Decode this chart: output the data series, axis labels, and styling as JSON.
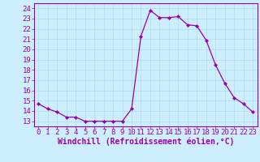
{
  "x": [
    0,
    1,
    2,
    3,
    4,
    5,
    6,
    7,
    8,
    9,
    10,
    11,
    12,
    13,
    14,
    15,
    16,
    17,
    18,
    19,
    20,
    21,
    22,
    23
  ],
  "y": [
    14.7,
    14.2,
    13.9,
    13.4,
    13.4,
    13.0,
    13.0,
    13.0,
    13.0,
    13.0,
    14.2,
    21.3,
    23.8,
    23.1,
    23.1,
    23.2,
    22.4,
    22.3,
    20.9,
    18.5,
    16.7,
    15.3,
    14.7,
    13.9
  ],
  "line_color": "#9900aa",
  "marker_color": "#9900aa",
  "bg_color": "#cceeff",
  "grid_color": "#aaddee",
  "tick_color": "#9900aa",
  "xlabel": "Windchill (Refroidissement éolien,°C)",
  "ylim": [
    12.5,
    24.5
  ],
  "xlim": [
    -0.5,
    23.5
  ],
  "yticks": [
    13,
    14,
    15,
    16,
    17,
    18,
    19,
    20,
    21,
    22,
    23,
    24
  ],
  "xticks": [
    0,
    1,
    2,
    3,
    4,
    5,
    6,
    7,
    8,
    9,
    10,
    11,
    12,
    13,
    14,
    15,
    16,
    17,
    18,
    19,
    20,
    21,
    22,
    23
  ],
  "font_size": 6.5,
  "label_font_size": 7.0
}
